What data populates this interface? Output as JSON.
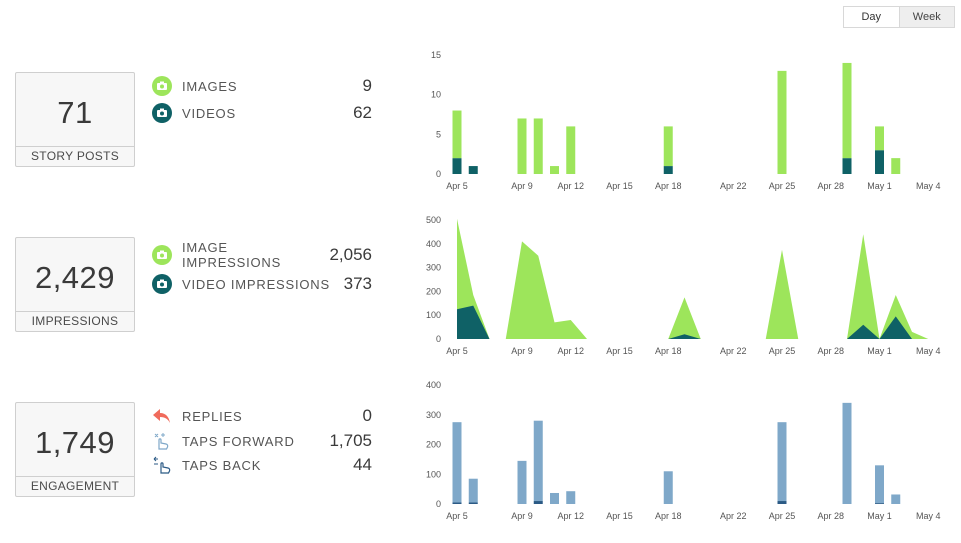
{
  "toggle": {
    "day": "Day",
    "week": "Week",
    "selected": "Day"
  },
  "story_posts": {
    "total": "71",
    "label": "STORY POSTS",
    "rows": [
      {
        "name": "IMAGES",
        "value": "9",
        "icon": "camera-icon"
      },
      {
        "name": "VIDEOS",
        "value": "62",
        "icon": "video-camera-icon"
      }
    ]
  },
  "impressions": {
    "total": "2,429",
    "label": "IMPRESSIONS",
    "rows": [
      {
        "name": "IMAGE IMPRESSIONS",
        "value": "2,056",
        "icon": "camera-icon"
      },
      {
        "name": "VIDEO IMPRESSIONS",
        "value": "373",
        "icon": "video-camera-icon"
      }
    ]
  },
  "engagement": {
    "total": "1,749",
    "label": "ENGAGEMENT",
    "rows": [
      {
        "name": "REPLIES",
        "value": "0",
        "icon": "reply-arrow-icon"
      },
      {
        "name": "TAPS FORWARD",
        "value": "1,705",
        "icon": "tap-forward-icon"
      },
      {
        "name": "TAPS BACK",
        "value": "44",
        "icon": "tap-back-icon"
      }
    ]
  },
  "colors": {
    "green": "#9de55b",
    "teal": "#0f6166",
    "blue": "#7fa8c9",
    "navy": "#2b5a85",
    "red": "#f06b5c"
  },
  "chart_data": [
    {
      "type": "bar",
      "stacked": true,
      "x": [
        "Apr 5",
        "Apr 6",
        "Apr 7",
        "Apr 8",
        "Apr 9",
        "Apr 10",
        "Apr 11",
        "Apr 12",
        "Apr 13",
        "Apr 14",
        "Apr 15",
        "Apr 16",
        "Apr 17",
        "Apr 18",
        "Apr 19",
        "Apr 20",
        "Apr 21",
        "Apr 22",
        "Apr 23",
        "Apr 24",
        "Apr 25",
        "Apr 26",
        "Apr 27",
        "Apr 28",
        "Apr 29",
        "Apr 30",
        "May 1",
        "May 2",
        "May 3",
        "May 4"
      ],
      "xticks": [
        "Apr 5",
        "Apr 9",
        "Apr 12",
        "Apr 15",
        "Apr 18",
        "Apr 22",
        "Apr 25",
        "Apr 28",
        "May 1",
        "May 4"
      ],
      "yticks": [
        "0",
        "5",
        "10",
        "15"
      ],
      "ylim": [
        0,
        15
      ],
      "series": [
        {
          "values": [
            2,
            1,
            0,
            0,
            0,
            0,
            0,
            0,
            0,
            0,
            0,
            0,
            0,
            1,
            0,
            0,
            0,
            0,
            0,
            0,
            0,
            0,
            0,
            0,
            2,
            0,
            3,
            0,
            0,
            0
          ]
        },
        {
          "values": [
            6,
            0,
            0,
            0,
            7,
            7,
            1,
            6,
            0,
            0,
            0,
            0,
            0,
            5,
            0,
            0,
            0,
            0,
            0,
            0,
            13,
            0,
            0,
            0,
            12,
            0,
            3,
            2,
            0,
            0
          ]
        }
      ]
    },
    {
      "type": "area",
      "stacked": true,
      "x": [
        "Apr 5",
        "Apr 6",
        "Apr 7",
        "Apr 8",
        "Apr 9",
        "Apr 10",
        "Apr 11",
        "Apr 12",
        "Apr 13",
        "Apr 14",
        "Apr 15",
        "Apr 16",
        "Apr 17",
        "Apr 18",
        "Apr 19",
        "Apr 20",
        "Apr 21",
        "Apr 22",
        "Apr 23",
        "Apr 24",
        "Apr 25",
        "Apr 26",
        "Apr 27",
        "Apr 28",
        "Apr 29",
        "Apr 30",
        "May 1",
        "May 2",
        "May 3",
        "May 4"
      ],
      "xticks": [
        "Apr 5",
        "Apr 9",
        "Apr 12",
        "Apr 15",
        "Apr 18",
        "Apr 22",
        "Apr 25",
        "Apr 28",
        "May 1",
        "May 4"
      ],
      "yticks": [
        "0",
        "100",
        "200",
        "300",
        "400",
        "500"
      ],
      "ylim": [
        0,
        500
      ],
      "series": [
        {
          "values": [
            125,
            140,
            0,
            0,
            0,
            0,
            0,
            0,
            0,
            0,
            0,
            0,
            0,
            0,
            20,
            0,
            0,
            0,
            0,
            0,
            0,
            0,
            0,
            0,
            0,
            60,
            0,
            95,
            0,
            0
          ]
        },
        {
          "values": [
            380,
            45,
            0,
            0,
            410,
            350,
            70,
            80,
            0,
            0,
            0,
            0,
            0,
            0,
            155,
            0,
            0,
            0,
            0,
            0,
            375,
            0,
            0,
            0,
            0,
            380,
            0,
            90,
            30,
            0
          ]
        }
      ]
    },
    {
      "type": "bar",
      "stacked": true,
      "x": [
        "Apr 5",
        "Apr 6",
        "Apr 7",
        "Apr 8",
        "Apr 9",
        "Apr 10",
        "Apr 11",
        "Apr 12",
        "Apr 13",
        "Apr 14",
        "Apr 15",
        "Apr 16",
        "Apr 17",
        "Apr 18",
        "Apr 19",
        "Apr 20",
        "Apr 21",
        "Apr 22",
        "Apr 23",
        "Apr 24",
        "Apr 25",
        "Apr 26",
        "Apr 27",
        "Apr 28",
        "Apr 29",
        "Apr 30",
        "May 1",
        "May 2",
        "May 3",
        "May 4"
      ],
      "xticks": [
        "Apr 5",
        "Apr 9",
        "Apr 12",
        "Apr 15",
        "Apr 18",
        "Apr 22",
        "Apr 25",
        "Apr 28",
        "May 1",
        "May 4"
      ],
      "yticks": [
        "0",
        "100",
        "200",
        "300",
        "400"
      ],
      "ylim": [
        0,
        400
      ],
      "series": [
        {
          "values": [
            5,
            5,
            0,
            0,
            0,
            10,
            0,
            0,
            0,
            0,
            0,
            0,
            0,
            0,
            0,
            0,
            0,
            0,
            0,
            0,
            10,
            0,
            0,
            0,
            0,
            0,
            3,
            0,
            0,
            0
          ]
        },
        {
          "values": [
            270,
            80,
            0,
            0,
            145,
            270,
            37,
            43,
            0,
            0,
            0,
            0,
            0,
            110,
            0,
            0,
            0,
            0,
            0,
            0,
            265,
            0,
            0,
            0,
            340,
            0,
            127,
            32,
            0,
            0
          ]
        }
      ]
    }
  ]
}
